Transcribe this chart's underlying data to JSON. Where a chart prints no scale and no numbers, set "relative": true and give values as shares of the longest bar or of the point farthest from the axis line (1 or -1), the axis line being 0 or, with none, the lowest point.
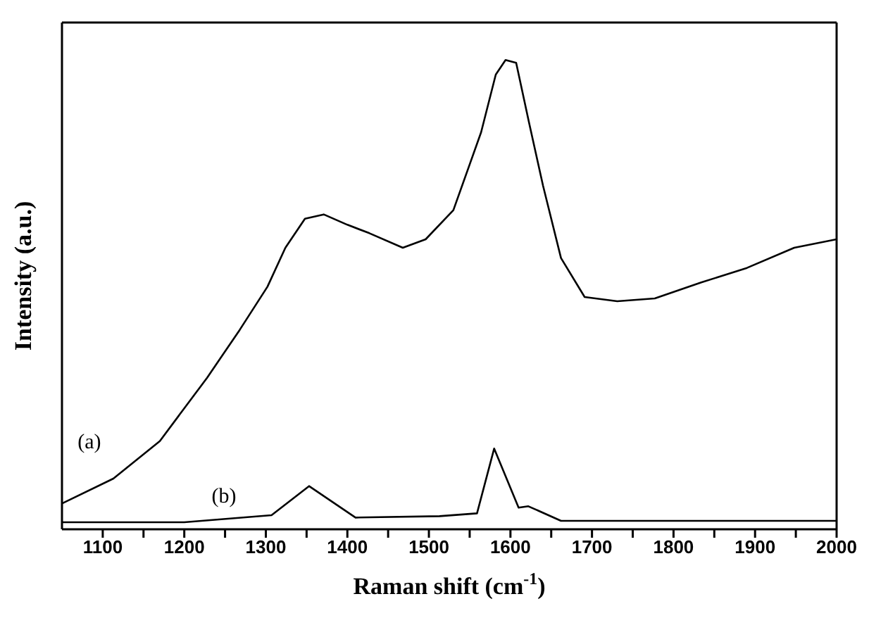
{
  "chart_data": {
    "type": "line",
    "xlabel": "Raman shift (cm$^{-1}$)",
    "ylabel": "Intensity (a.u.)",
    "relative": true,
    "xlim": [
      1050,
      2000
    ],
    "xticks": [
      1100,
      {
        "value": 1150,
        "label": null
      },
      1200,
      {
        "value": 1250,
        "label": null
      },
      1300,
      {
        "value": 1350,
        "label": null
      },
      1400,
      {
        "value": 1450,
        "label": null
      },
      1500,
      {
        "value": 1550,
        "label": null
      },
      1600,
      {
        "value": 1650,
        "label": null
      },
      1700,
      {
        "value": 1750,
        "label": null
      },
      1800,
      {
        "value": 1850,
        "label": null
      },
      1900,
      {
        "value": 1950,
        "label": null
      },
      2000
    ],
    "marker": "none",
    "line_style": "solid",
    "series": [
      {
        "name": "(a)",
        "color": "#000000",
        "x": [
          1050,
          1113,
          1170,
          1228,
          1268,
          1302,
          1324,
          1348,
          1371,
          1400,
          1427,
          1468,
          1496,
          1530,
          1547,
          1564,
          1582,
          1594,
          1607,
          1623,
          1640,
          1662,
          1691,
          1731,
          1777,
          1834,
          1890,
          1948,
          2000
        ],
        "values": [
          0.055,
          0.108,
          0.188,
          0.323,
          0.425,
          0.517,
          0.6,
          0.662,
          0.671,
          0.649,
          0.631,
          0.6,
          0.618,
          0.68,
          0.763,
          0.846,
          0.969,
          1.0,
          0.994,
          0.865,
          0.732,
          0.578,
          0.495,
          0.486,
          0.492,
          0.526,
          0.557,
          0.6,
          0.618
        ]
      },
      {
        "name": "(b)",
        "color": "#000000",
        "x": [
          1050,
          1200,
          1307,
          1353,
          1410,
          1513,
          1559,
          1580,
          1610,
          1622,
          1662,
          1800,
          2000
        ],
        "values": [
          0.015,
          0.015,
          0.03,
          0.092,
          0.025,
          0.028,
          0.034,
          0.172,
          0.046,
          0.049,
          0.018,
          0.018,
          0.018
        ]
      }
    ]
  }
}
